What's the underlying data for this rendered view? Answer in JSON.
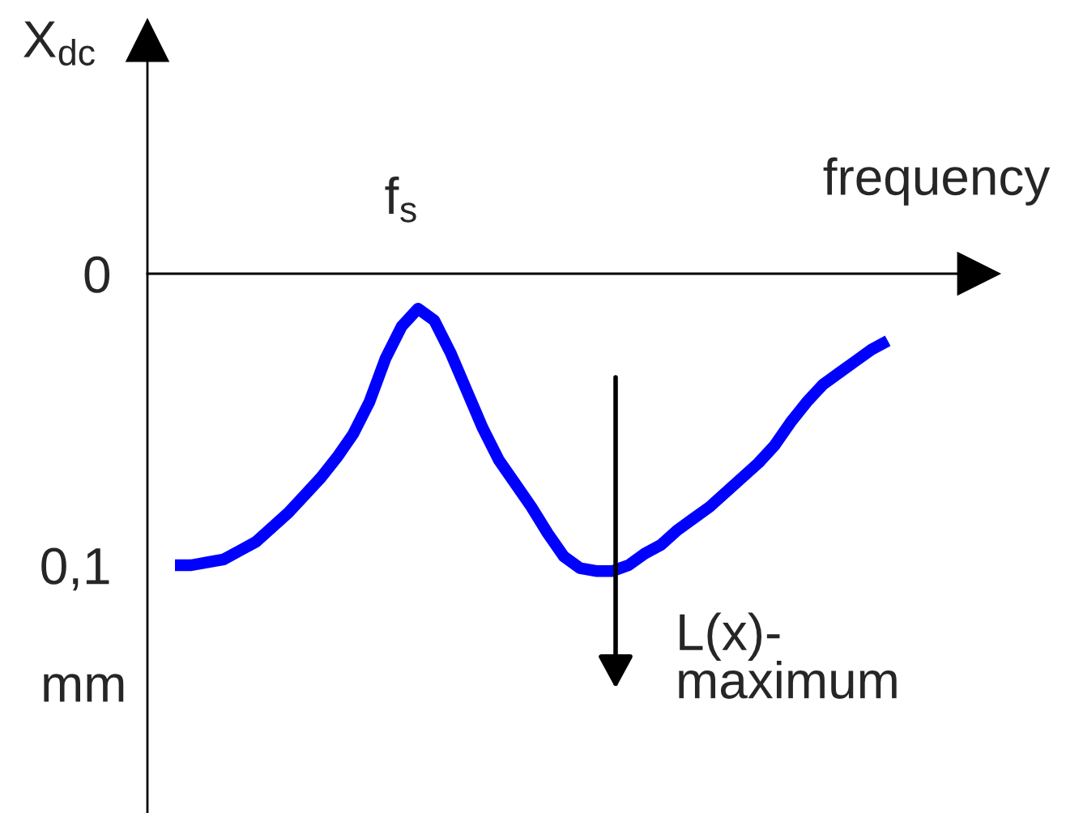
{
  "chart_data": {
    "type": "line",
    "xlabel": "frequency",
    "ylabel": "X$_{dc}$",
    "categories": [
      null,
      null,
      null,
      null,
      null,
      null,
      null,
      null,
      null,
      null,
      null,
      null,
      null,
      null,
      null,
      null,
      null,
      null,
      null,
      null,
      null,
      null,
      null,
      null,
      null,
      null,
      null,
      null,
      null,
      null,
      null,
      null,
      null,
      null,
      null,
      null,
      null,
      null,
      null,
      null,
      null,
      null,
      null,
      null,
      null
    ],
    "values": [
      0.1,
      0.1,
      0.099,
      0.098,
      0.095,
      0.092,
      0.087,
      0.082,
      0.076,
      0.07,
      0.063,
      0.055,
      0.044,
      0.029,
      0.018,
      0.012,
      0.016,
      0.027,
      0.04,
      0.053,
      0.064,
      0.072,
      0.08,
      0.089,
      0.097,
      0.101,
      0.102,
      0.102,
      0.1,
      0.096,
      0.093,
      0.088,
      0.084,
      0.08,
      0.075,
      0.07,
      0.065,
      0.059,
      0.051,
      0.044,
      0.038,
      0.034,
      0.03,
      0.026,
      0.023
    ],
    "color": "#0000ff",
    "ylim": [
      0.185,
      -0.08
    ],
    "yticks": [
      0,
      {
        "value": 0.1,
        "label": "0,1"
      }
    ],
    "annotations": [
      "f$_{s}$",
      "L(x)-\nmaximum",
      "mm"
    ],
    "marker": "none",
    "line_style": "solid"
  }
}
